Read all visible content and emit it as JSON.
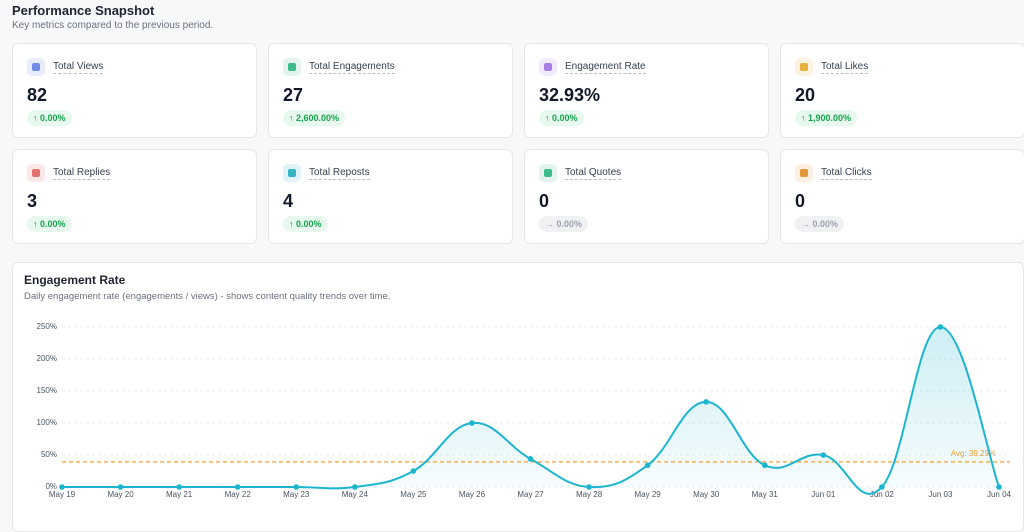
{
  "header": {
    "title": "Performance Snapshot",
    "subtitle": "Key metrics compared to the previous period."
  },
  "cards": [
    {
      "label": "Total Views",
      "value": "82",
      "change": "0.00%",
      "trend": "up",
      "color": "#5b7be0"
    },
    {
      "label": "Total Engagements",
      "value": "27",
      "change": "2,600.00%",
      "trend": "up",
      "color": "#22b07a"
    },
    {
      "label": "Engagement Rate",
      "value": "32.93%",
      "change": "0.00%",
      "trend": "up",
      "color": "#9b6be0"
    },
    {
      "label": "Total Likes",
      "value": "20",
      "change": "1,900.00%",
      "trend": "up",
      "color": "#e0a21b"
    },
    {
      "label": "Total Replies",
      "value": "3",
      "change": "0.00%",
      "trend": "up",
      "color": "#e05b5b"
    },
    {
      "label": "Total Reposts",
      "value": "4",
      "change": "0.00%",
      "trend": "up",
      "color": "#1aa7b8"
    },
    {
      "label": "Total Quotes",
      "value": "0",
      "change": "0.00%",
      "trend": "flat",
      "color": "#22b07a"
    },
    {
      "label": "Total Clicks",
      "value": "0",
      "change": "0.00%",
      "trend": "flat",
      "color": "#e0861b"
    }
  ],
  "chart_data": {
    "type": "line",
    "title": "Engagement Rate",
    "subtitle": "Daily engagement rate (engagements / views) - shows content quality trends over time.",
    "categories": [
      "May 19",
      "May 20",
      "May 21",
      "May 22",
      "May 23",
      "May 24",
      "May 25",
      "May 26",
      "May 27",
      "May 28",
      "May 29",
      "May 30",
      "May 31",
      "Jun 01",
      "Jun 02",
      "Jun 03",
      "Jun 04"
    ],
    "values": [
      0,
      0,
      0,
      0,
      0,
      0,
      25,
      100,
      44,
      0,
      34,
      133,
      34,
      50,
      0,
      250,
      0
    ],
    "color": "#1cb5d0",
    "ylim": [
      0,
      250
    ],
    "yticks": [
      {
        "value": 0,
        "label": "0%"
      },
      {
        "value": 50,
        "label": "50%"
      },
      {
        "value": 100,
        "label": "100%"
      },
      {
        "value": 150,
        "label": "150%"
      },
      {
        "value": 200,
        "label": "200%"
      },
      {
        "value": 250,
        "label": "250%"
      }
    ],
    "grid": true,
    "average": {
      "value": 39.29,
      "label": "Avg: 39.29%",
      "color": "#f0a030"
    }
  }
}
